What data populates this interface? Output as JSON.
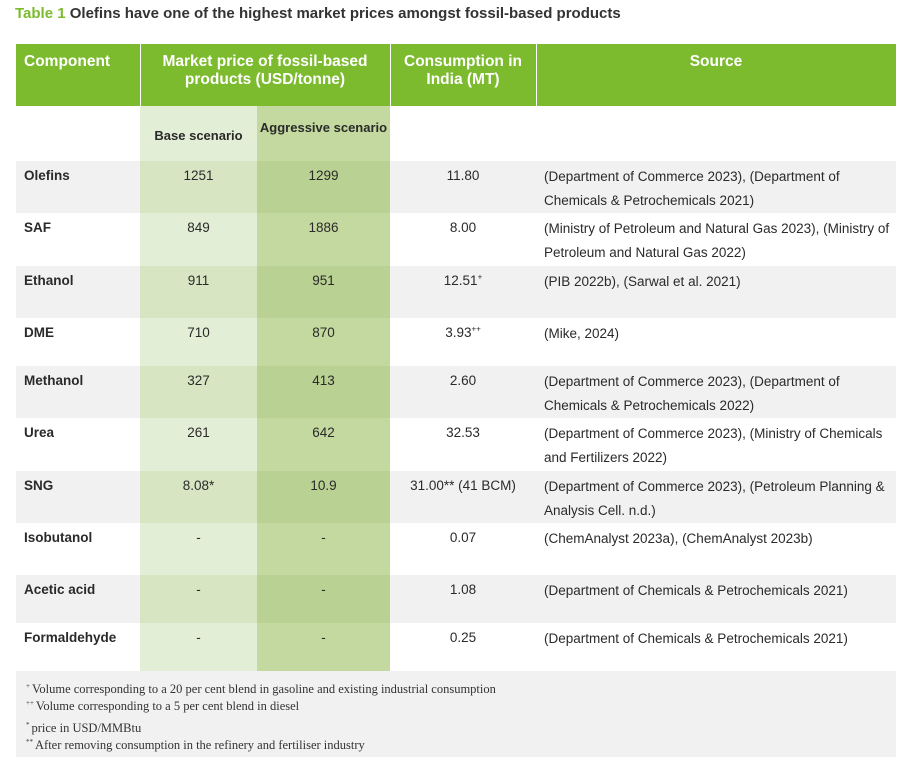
{
  "title": {
    "label": "Table 1",
    "text": "Olefins have one of the highest market prices amongst fossil-based products"
  },
  "header": {
    "component": "Component",
    "price": "Market price of fossil-based products (USD/tonne)",
    "consumption": "Consumption in India (MT)",
    "source": "Source"
  },
  "subheader": {
    "base": "Base scenario",
    "aggressive": "Aggressive scenario"
  },
  "rows": [
    {
      "component": "Olefins",
      "base": "1251",
      "aggressive": "1299",
      "consumption": "11.80",
      "mark": "",
      "source": "(Department of Commerce 2023), (Department of Chemicals & Petrochemicals 2021)"
    },
    {
      "component": "SAF",
      "base": "849",
      "aggressive": "1886",
      "consumption": "8.00",
      "mark": "",
      "source": "(Ministry of Petroleum and Natural Gas 2023), (Ministry of Petroleum and Natural Gas 2022)"
    },
    {
      "component": "Ethanol",
      "base": "911",
      "aggressive": "951",
      "consumption": "12.51",
      "mark": "+",
      "source": "(PIB 2022b), (Sarwal et al. 2021)"
    },
    {
      "component": "DME",
      "base": "710",
      "aggressive": "870",
      "consumption": "3.93",
      "mark": "++",
      "source": "(Mike, 2024)"
    },
    {
      "component": "Methanol",
      "base": "327",
      "aggressive": "413",
      "consumption": "2.60",
      "mark": "",
      "source": "(Department of Commerce 2023), (Department of Chemicals & Petrochemicals 2022)"
    },
    {
      "component": "Urea",
      "base": "261",
      "aggressive": "642",
      "consumption": "32.53",
      "mark": "",
      "source": "(Department of Commerce 2023), (Ministry of Chemicals and Fertilizers 2022)"
    },
    {
      "component": "SNG",
      "base": "8.08*",
      "aggressive": "10.9",
      "consumption": "31.00** (41 BCM)",
      "mark": "",
      "source": "(Department of Commerce 2023), (Petroleum Planning & Analysis Cell. n.d.)"
    },
    {
      "component": "Isobutanol",
      "base": "-",
      "aggressive": "-",
      "consumption": "0.07",
      "mark": "",
      "source": "(ChemAnalyst 2023a), (ChemAnalyst 2023b)"
    },
    {
      "component": "Acetic acid",
      "base": "-",
      "aggressive": "-",
      "consumption": "1.08",
      "mark": "",
      "source": "(Department of Chemicals & Petrochemicals 2021)"
    },
    {
      "component": "Formaldehyde",
      "base": "-",
      "aggressive": "-",
      "consumption": "0.25",
      "mark": "",
      "source": "(Department of Chemicals & Petrochemicals 2021)"
    }
  ],
  "footnotes": [
    {
      "mark": "+",
      "text": "Volume corresponding to a 20 per cent blend in gasoline and existing industrial consumption"
    },
    {
      "mark": "++",
      "text": "Volume corresponding to a 5 per cent blend in diesel"
    },
    {
      "mark": "*",
      "text": "price in USD/MMBtu"
    },
    {
      "mark": "**",
      "text": "After removing consumption in the refinery and fertiliser industry"
    }
  ]
}
